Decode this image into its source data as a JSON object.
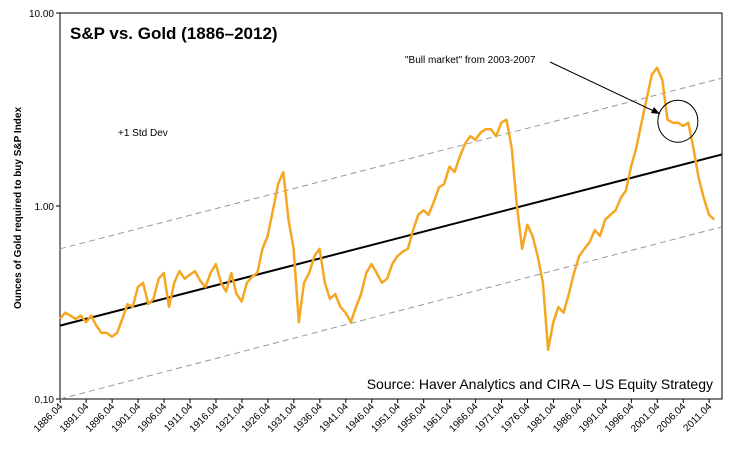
{
  "chart_data": {
    "type": "line",
    "title": "S&P vs. Gold (1886–2012)",
    "ylabel": "Ounces of Gold required to buy S&P Index",
    "xlabel": "",
    "y_scale": "log",
    "ylim": [
      0.1,
      10
    ],
    "y_ticks": [
      "10.00",
      "1.00",
      "0.10"
    ],
    "y_tick_values": [
      10,
      1,
      0.1
    ],
    "xlim": [
      1886,
      2013.5
    ],
    "x_ticks": [
      "1886.04",
      "1891.04",
      "1896.04",
      "1901.04",
      "1906.04",
      "1911.04",
      "1916.04",
      "1921.04",
      "1926.04",
      "1931.04",
      "1936.04",
      "1941.04",
      "1946.04",
      "1951.04",
      "1956.04",
      "1961.04",
      "1966.04",
      "1971.04",
      "1976.04",
      "1981.04",
      "1986.04",
      "1991.04",
      "1996.04",
      "2001.04",
      "2006.04",
      "2011.04"
    ],
    "x_tick_values": [
      1886.04,
      1891.04,
      1896.04,
      1901.04,
      1906.04,
      1911.04,
      1916.04,
      1921.04,
      1926.04,
      1931.04,
      1936.04,
      1941.04,
      1946.04,
      1951.04,
      1956.04,
      1961.04,
      1966.04,
      1971.04,
      1976.04,
      1981.04,
      1986.04,
      1991.04,
      1996.04,
      2001.04,
      2006.04,
      2011.04
    ],
    "grid": false,
    "series": [
      {
        "name": "",
        "color": "#F5A623",
        "x": [
          1886,
          1887,
          1888,
          1889,
          1890,
          1891,
          1892,
          1893,
          1894,
          1895,
          1896,
          1897,
          1898,
          1899,
          1900,
          1901,
          1902,
          1903,
          1904,
          1905,
          1906,
          1907,
          1908,
          1909,
          1910,
          1911,
          1912,
          1913,
          1914,
          1915,
          1916,
          1917,
          1918,
          1919,
          1920,
          1921,
          1922,
          1923,
          1924,
          1925,
          1926,
          1927,
          1928,
          1929,
          1930,
          1931,
          1932,
          1933,
          1934,
          1935,
          1936,
          1937,
          1938,
          1939,
          1940,
          1941,
          1942,
          1943,
          1944,
          1945,
          1946,
          1947,
          1948,
          1949,
          1950,
          1951,
          1952,
          1953,
          1954,
          1955,
          1956,
          1957,
          1958,
          1959,
          1960,
          1961,
          1962,
          1963,
          1964,
          1965,
          1966,
          1967,
          1968,
          1969,
          1970,
          1971,
          1972,
          1973,
          1974,
          1975,
          1976,
          1977,
          1978,
          1979,
          1980,
          1981,
          1982,
          1983,
          1984,
          1985,
          1986,
          1987,
          1988,
          1989,
          1990,
          1991,
          1992,
          1993,
          1994,
          1995,
          1996,
          1997,
          1998,
          1999,
          2000,
          2001,
          2002,
          2003,
          2004,
          2005,
          2006,
          2007,
          2008,
          2009,
          2010,
          2011,
          2012
        ],
        "values": [
          0.26,
          0.28,
          0.27,
          0.26,
          0.27,
          0.25,
          0.27,
          0.24,
          0.22,
          0.22,
          0.21,
          0.22,
          0.26,
          0.31,
          0.3,
          0.38,
          0.4,
          0.31,
          0.33,
          0.42,
          0.45,
          0.3,
          0.4,
          0.46,
          0.42,
          0.44,
          0.46,
          0.41,
          0.38,
          0.45,
          0.5,
          0.4,
          0.36,
          0.45,
          0.35,
          0.32,
          0.4,
          0.43,
          0.45,
          0.6,
          0.7,
          0.95,
          1.3,
          1.5,
          0.85,
          0.6,
          0.25,
          0.4,
          0.45,
          0.55,
          0.6,
          0.4,
          0.33,
          0.35,
          0.3,
          0.28,
          0.25,
          0.3,
          0.35,
          0.45,
          0.5,
          0.45,
          0.4,
          0.42,
          0.5,
          0.55,
          0.58,
          0.6,
          0.75,
          0.9,
          0.95,
          0.9,
          1.05,
          1.25,
          1.3,
          1.6,
          1.5,
          1.8,
          2.1,
          2.3,
          2.2,
          2.4,
          2.5,
          2.5,
          2.3,
          2.7,
          2.8,
          2.0,
          1.0,
          0.6,
          0.8,
          0.7,
          0.55,
          0.4,
          0.18,
          0.25,
          0.3,
          0.28,
          0.35,
          0.45,
          0.55,
          0.6,
          0.65,
          0.75,
          0.7,
          0.85,
          0.9,
          0.95,
          1.1,
          1.2,
          1.6,
          2.0,
          2.7,
          3.6,
          4.8,
          5.2,
          4.5,
          2.8,
          2.7,
          2.7,
          2.6,
          2.7,
          2.0,
          1.4,
          1.1,
          0.9,
          0.85
        ]
      }
    ],
    "trend": {
      "x": [
        1886,
        2013.5
      ],
      "values": [
        0.24,
        1.85
      ],
      "color": "#000000"
    },
    "bands": [
      {
        "x": [
          1886,
          2013.5
        ],
        "values": [
          0.6,
          4.6
        ],
        "color": "#999999"
      },
      {
        "x": [
          1886,
          2013.5
        ],
        "values": [
          0.1,
          0.78
        ],
        "color": "#999999"
      }
    ],
    "annotations": {
      "std_dev": "+1 Std Dev",
      "bull_market": "\"Bull market\" from 2003-2007",
      "bull_market_x": 2005,
      "bull_market_y": 2.75,
      "source": "Source: Haver Analytics and CIRA – US Equity Strategy"
    }
  }
}
